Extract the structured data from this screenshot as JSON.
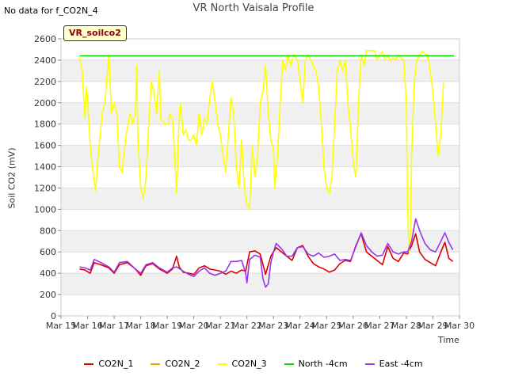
{
  "no_data_text": "No data for f_CO2N_4",
  "chart_data": {
    "type": "line",
    "title": "VR North Vaisala Profile",
    "badge": "VR_soilco2",
    "xlabel": "Time",
    "ylabel": "Soil CO2 (mV)",
    "ylim": [
      0,
      2600
    ],
    "yticks": [
      0,
      200,
      400,
      600,
      800,
      1000,
      1200,
      1400,
      1600,
      1800,
      2000,
      2200,
      2400,
      2600
    ],
    "xlim": [
      15,
      30
    ],
    "xticks": [
      {
        "v": 15,
        "label": "Mar 15"
      },
      {
        "v": 16,
        "label": "Mar 16"
      },
      {
        "v": 17,
        "label": "Mar 17"
      },
      {
        "v": 18,
        "label": "Mar 18"
      },
      {
        "v": 19,
        "label": "Mar 19"
      },
      {
        "v": 20,
        "label": "Mar 20"
      },
      {
        "v": 21,
        "label": "Mar 21"
      },
      {
        "v": 22,
        "label": "Mar 22"
      },
      {
        "v": 23,
        "label": "Mar 23"
      },
      {
        "v": 24,
        "label": "Mar 24"
      },
      {
        "v": 25,
        "label": "Mar 25"
      },
      {
        "v": 26,
        "label": "Mar 26"
      },
      {
        "v": 27,
        "label": "Mar 27"
      },
      {
        "v": 28,
        "label": "Mar 28"
      },
      {
        "v": 29,
        "label": "Mar 29"
      },
      {
        "v": 30,
        "label": "Mar 30"
      }
    ],
    "series": [
      {
        "name": "CO2N_1",
        "color": "#dd0000",
        "points": [
          [
            15.7,
            440
          ],
          [
            15.9,
            430
          ],
          [
            16.1,
            400
          ],
          [
            16.25,
            500
          ],
          [
            16.5,
            480
          ],
          [
            16.8,
            450
          ],
          [
            17.0,
            400
          ],
          [
            17.2,
            480
          ],
          [
            17.5,
            500
          ],
          [
            17.8,
            440
          ],
          [
            18.0,
            380
          ],
          [
            18.2,
            470
          ],
          [
            18.45,
            490
          ],
          [
            18.7,
            440
          ],
          [
            19.0,
            400
          ],
          [
            19.2,
            440
          ],
          [
            19.35,
            560
          ],
          [
            19.45,
            460
          ],
          [
            19.6,
            410
          ],
          [
            19.8,
            400
          ],
          [
            20.0,
            390
          ],
          [
            20.2,
            450
          ],
          [
            20.4,
            470
          ],
          [
            20.6,
            440
          ],
          [
            20.8,
            430
          ],
          [
            21.0,
            420
          ],
          [
            21.2,
            390
          ],
          [
            21.4,
            420
          ],
          [
            21.6,
            400
          ],
          [
            21.8,
            430
          ],
          [
            21.95,
            420
          ],
          [
            22.1,
            600
          ],
          [
            22.3,
            610
          ],
          [
            22.5,
            580
          ],
          [
            22.7,
            390
          ],
          [
            22.9,
            560
          ],
          [
            23.1,
            640
          ],
          [
            23.3,
            600
          ],
          [
            23.5,
            560
          ],
          [
            23.7,
            520
          ],
          [
            23.9,
            640
          ],
          [
            24.1,
            660
          ],
          [
            24.3,
            560
          ],
          [
            24.5,
            490
          ],
          [
            24.7,
            460
          ],
          [
            24.9,
            440
          ],
          [
            25.1,
            410
          ],
          [
            25.3,
            430
          ],
          [
            25.5,
            490
          ],
          [
            25.7,
            520
          ],
          [
            25.9,
            510
          ],
          [
            26.1,
            660
          ],
          [
            26.3,
            770
          ],
          [
            26.5,
            600
          ],
          [
            26.7,
            560
          ],
          [
            26.9,
            520
          ],
          [
            27.1,
            480
          ],
          [
            27.3,
            650
          ],
          [
            27.5,
            540
          ],
          [
            27.7,
            510
          ],
          [
            27.9,
            590
          ],
          [
            28.05,
            580
          ],
          [
            28.2,
            660
          ],
          [
            28.35,
            770
          ],
          [
            28.5,
            600
          ],
          [
            28.7,
            530
          ],
          [
            28.9,
            500
          ],
          [
            29.1,
            470
          ],
          [
            29.3,
            600
          ],
          [
            29.45,
            690
          ],
          [
            29.6,
            540
          ],
          [
            29.75,
            510
          ]
        ]
      },
      {
        "name": "CO2N_2",
        "color": "#ff9900",
        "points": []
      },
      {
        "name": "CO2N_3",
        "color": "#ffff00",
        "points": [
          [
            15.7,
            2430
          ],
          [
            15.8,
            2300
          ],
          [
            15.9,
            1850
          ],
          [
            15.95,
            2150
          ],
          [
            16.0,
            2050
          ],
          [
            16.1,
            1600
          ],
          [
            16.2,
            1350
          ],
          [
            16.3,
            1170
          ],
          [
            16.4,
            1500
          ],
          [
            16.55,
            1900
          ],
          [
            16.65,
            2000
          ],
          [
            16.8,
            2450
          ],
          [
            16.9,
            1900
          ],
          [
            17.0,
            2000
          ],
          [
            17.1,
            1900
          ],
          [
            17.2,
            1400
          ],
          [
            17.3,
            1350
          ],
          [
            17.45,
            1700
          ],
          [
            17.6,
            1900
          ],
          [
            17.7,
            1800
          ],
          [
            17.8,
            1900
          ],
          [
            17.85,
            2350
          ],
          [
            17.9,
            1650
          ],
          [
            18.0,
            1200
          ],
          [
            18.1,
            1100
          ],
          [
            18.2,
            1300
          ],
          [
            18.3,
            1800
          ],
          [
            18.4,
            2200
          ],
          [
            18.5,
            2100
          ],
          [
            18.6,
            1900
          ],
          [
            18.7,
            2300
          ],
          [
            18.75,
            1850
          ],
          [
            18.9,
            1800
          ],
          [
            19.05,
            1800
          ],
          [
            19.1,
            1900
          ],
          [
            19.2,
            1850
          ],
          [
            19.3,
            1400
          ],
          [
            19.35,
            1150
          ],
          [
            19.45,
            1900
          ],
          [
            19.5,
            2000
          ],
          [
            19.6,
            1700
          ],
          [
            19.7,
            1750
          ],
          [
            19.8,
            1650
          ],
          [
            19.9,
            1650
          ],
          [
            20.0,
            1700
          ],
          [
            20.1,
            1600
          ],
          [
            20.2,
            1900
          ],
          [
            20.3,
            1700
          ],
          [
            20.4,
            1850
          ],
          [
            20.5,
            1800
          ],
          [
            20.6,
            2050
          ],
          [
            20.7,
            2200
          ],
          [
            20.8,
            2000
          ],
          [
            20.9,
            1800
          ],
          [
            21.0,
            1700
          ],
          [
            21.1,
            1500
          ],
          [
            21.2,
            1350
          ],
          [
            21.3,
            1700
          ],
          [
            21.4,
            2050
          ],
          [
            21.5,
            1900
          ],
          [
            21.6,
            1400
          ],
          [
            21.7,
            1200
          ],
          [
            21.8,
            1650
          ],
          [
            21.9,
            1200
          ],
          [
            22.0,
            1050
          ],
          [
            22.1,
            1000
          ],
          [
            22.2,
            1600
          ],
          [
            22.3,
            1300
          ],
          [
            22.4,
            1500
          ],
          [
            22.5,
            2000
          ],
          [
            22.6,
            2100
          ],
          [
            22.7,
            2350
          ],
          [
            22.8,
            1900
          ],
          [
            22.9,
            1650
          ],
          [
            23.0,
            1550
          ],
          [
            23.05,
            1200
          ],
          [
            23.15,
            1500
          ],
          [
            23.25,
            2000
          ],
          [
            23.35,
            2400
          ],
          [
            23.45,
            2300
          ],
          [
            23.55,
            2450
          ],
          [
            23.65,
            2350
          ],
          [
            23.75,
            2450
          ],
          [
            23.9,
            2400
          ],
          [
            24.0,
            2200
          ],
          [
            24.1,
            2000
          ],
          [
            24.2,
            2400
          ],
          [
            24.3,
            2450
          ],
          [
            24.4,
            2400
          ],
          [
            24.5,
            2350
          ],
          [
            24.6,
            2300
          ],
          [
            24.7,
            2150
          ],
          [
            24.8,
            1800
          ],
          [
            24.9,
            1400
          ],
          [
            25.0,
            1200
          ],
          [
            25.1,
            1150
          ],
          [
            25.2,
            1300
          ],
          [
            25.3,
            1800
          ],
          [
            25.4,
            2300
          ],
          [
            25.5,
            2400
          ],
          [
            25.6,
            2300
          ],
          [
            25.7,
            2400
          ],
          [
            25.8,
            2000
          ],
          [
            25.9,
            1750
          ],
          [
            26.0,
            1450
          ],
          [
            26.1,
            1300
          ],
          [
            26.2,
            2000
          ],
          [
            26.3,
            2450
          ],
          [
            26.4,
            2350
          ],
          [
            26.5,
            2490
          ],
          [
            26.6,
            2490
          ],
          [
            26.7,
            2490
          ],
          [
            26.8,
            2490
          ],
          [
            26.9,
            2400
          ],
          [
            27.0,
            2450
          ],
          [
            27.1,
            2480
          ],
          [
            27.2,
            2400
          ],
          [
            27.3,
            2450
          ],
          [
            27.4,
            2400
          ],
          [
            27.5,
            2420
          ],
          [
            27.6,
            2400
          ],
          [
            27.7,
            2450
          ],
          [
            27.8,
            2420
          ],
          [
            27.9,
            2400
          ],
          [
            28.0,
            2000
          ],
          [
            28.05,
            1000
          ],
          [
            28.1,
            600
          ],
          [
            28.15,
            750
          ],
          [
            28.2,
            1500
          ],
          [
            28.3,
            2200
          ],
          [
            28.4,
            2400
          ],
          [
            28.5,
            2450
          ],
          [
            28.6,
            2480
          ],
          [
            28.7,
            2460
          ],
          [
            28.8,
            2450
          ],
          [
            28.9,
            2300
          ],
          [
            29.0,
            2100
          ],
          [
            29.1,
            1800
          ],
          [
            29.2,
            1500
          ],
          [
            29.3,
            1700
          ],
          [
            29.4,
            2200
          ]
        ]
      },
      {
        "name": "North -4cm",
        "color": "#00dd00",
        "points": [
          [
            15.7,
            2440
          ],
          [
            29.8,
            2440
          ]
        ]
      },
      {
        "name": "East -4cm",
        "color": "#9933ee",
        "points": [
          [
            15.7,
            460
          ],
          [
            15.9,
            450
          ],
          [
            16.1,
            430
          ],
          [
            16.25,
            530
          ],
          [
            16.5,
            500
          ],
          [
            16.8,
            460
          ],
          [
            17.0,
            410
          ],
          [
            17.2,
            500
          ],
          [
            17.5,
            510
          ],
          [
            17.8,
            440
          ],
          [
            18.0,
            400
          ],
          [
            18.2,
            480
          ],
          [
            18.45,
            500
          ],
          [
            18.7,
            450
          ],
          [
            19.0,
            410
          ],
          [
            19.2,
            450
          ],
          [
            19.35,
            460
          ],
          [
            19.6,
            420
          ],
          [
            19.8,
            390
          ],
          [
            20.0,
            370
          ],
          [
            20.2,
            420
          ],
          [
            20.4,
            450
          ],
          [
            20.6,
            400
          ],
          [
            20.8,
            380
          ],
          [
            21.0,
            400
          ],
          [
            21.2,
            420
          ],
          [
            21.4,
            510
          ],
          [
            21.6,
            510
          ],
          [
            21.8,
            520
          ],
          [
            21.95,
            400
          ],
          [
            22.0,
            310
          ],
          [
            22.1,
            530
          ],
          [
            22.3,
            570
          ],
          [
            22.5,
            550
          ],
          [
            22.6,
            350
          ],
          [
            22.7,
            270
          ],
          [
            22.8,
            300
          ],
          [
            22.9,
            500
          ],
          [
            23.0,
            600
          ],
          [
            23.1,
            680
          ],
          [
            23.3,
            630
          ],
          [
            23.5,
            560
          ],
          [
            23.7,
            560
          ],
          [
            23.9,
            640
          ],
          [
            24.1,
            650
          ],
          [
            24.3,
            580
          ],
          [
            24.5,
            560
          ],
          [
            24.7,
            590
          ],
          [
            24.9,
            550
          ],
          [
            25.1,
            560
          ],
          [
            25.3,
            580
          ],
          [
            25.5,
            520
          ],
          [
            25.7,
            530
          ],
          [
            25.9,
            520
          ],
          [
            26.1,
            650
          ],
          [
            26.3,
            780
          ],
          [
            26.5,
            660
          ],
          [
            26.7,
            600
          ],
          [
            26.9,
            560
          ],
          [
            27.1,
            570
          ],
          [
            27.3,
            680
          ],
          [
            27.5,
            600
          ],
          [
            27.7,
            580
          ],
          [
            27.9,
            600
          ],
          [
            28.05,
            600
          ],
          [
            28.2,
            700
          ],
          [
            28.35,
            910
          ],
          [
            28.5,
            800
          ],
          [
            28.7,
            680
          ],
          [
            28.9,
            620
          ],
          [
            29.1,
            600
          ],
          [
            29.3,
            700
          ],
          [
            29.45,
            780
          ],
          [
            29.6,
            690
          ],
          [
            29.75,
            620
          ]
        ]
      }
    ],
    "legend": [
      {
        "name": "CO2N_1",
        "color": "#dd0000"
      },
      {
        "name": "CO2N_2",
        "color": "#ff9900"
      },
      {
        "name": "CO2N_3",
        "color": "#ffff00"
      },
      {
        "name": "North -4cm",
        "color": "#00dd00"
      },
      {
        "name": "East -4cm",
        "color": "#9933ee"
      }
    ]
  }
}
